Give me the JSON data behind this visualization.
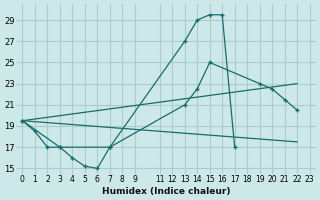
{
  "xlabel": "Humidex (Indice chaleur)",
  "background_color": "#cce8e8",
  "grid_color": "#aacccc",
  "line_color": "#1a6b6b",
  "xlim": [
    -0.5,
    23.5
  ],
  "ylim": [
    14.5,
    30.5
  ],
  "xticks": [
    0,
    1,
    2,
    3,
    4,
    5,
    6,
    7,
    8,
    9,
    11,
    12,
    13,
    14,
    15,
    16,
    17,
    18,
    19,
    20,
    21,
    22,
    23
  ],
  "yticks": [
    15,
    17,
    19,
    21,
    23,
    25,
    27,
    29
  ],
  "curves": [
    {
      "x": [
        0,
        1,
        2,
        3,
        4,
        5,
        6,
        7,
        13,
        14,
        15,
        16,
        17
      ],
      "y": [
        19.5,
        18.5,
        17.0,
        17.0,
        16.0,
        15.2,
        15.0,
        17.0,
        27.0,
        29.0,
        29.5,
        29.5,
        17.0
      ],
      "marker": true,
      "dashed": false
    },
    {
      "x": [
        0,
        3,
        7,
        13,
        14,
        15,
        19,
        20,
        21,
        22
      ],
      "y": [
        19.5,
        17.0,
        17.0,
        21.0,
        22.5,
        25.0,
        23.0,
        22.5,
        21.5,
        20.5
      ],
      "marker": true,
      "dashed": false
    },
    {
      "x": [
        0,
        22
      ],
      "y": [
        19.5,
        23.0
      ],
      "marker": false,
      "dashed": false
    },
    {
      "x": [
        0,
        22
      ],
      "y": [
        19.5,
        17.5
      ],
      "marker": false,
      "dashed": false
    }
  ]
}
